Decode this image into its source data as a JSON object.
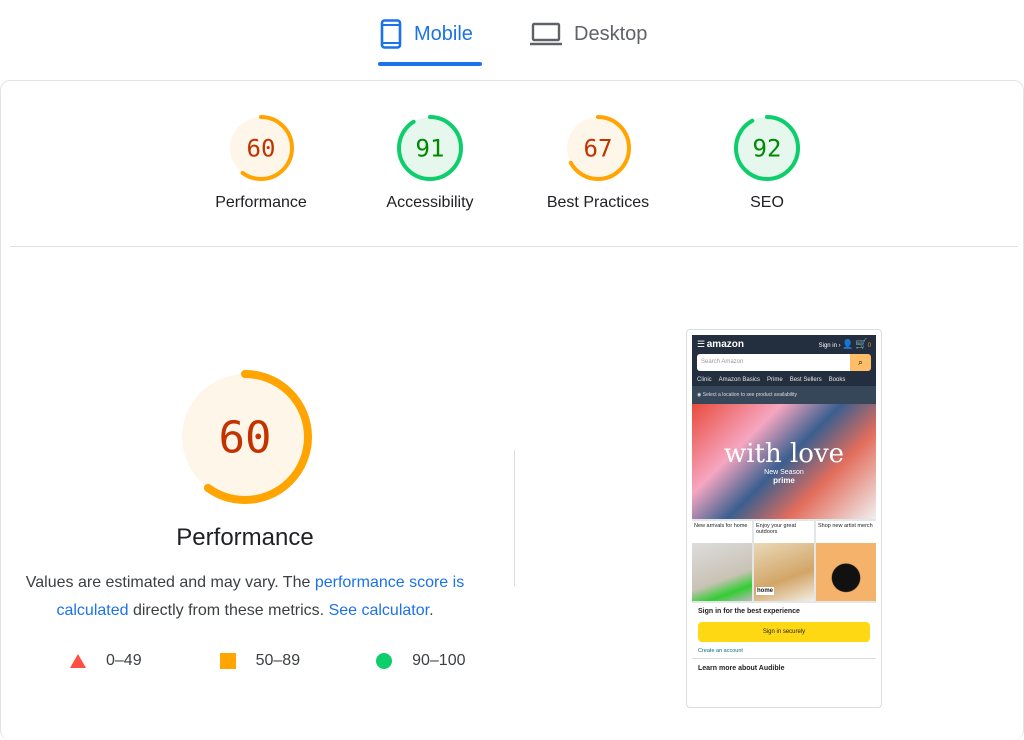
{
  "tabs": [
    {
      "label": "Mobile",
      "icon": "smartphone-icon",
      "active": true
    },
    {
      "label": "Desktop",
      "icon": "laptop-icon",
      "active": false
    }
  ],
  "colors": {
    "accent": "#1a73e8",
    "average": "#ffa400",
    "average_text": "#c33300",
    "average_bg": "#fff6ea",
    "pass": "#0cce6b",
    "pass_text": "#008800",
    "pass_bg": "#e6f8ee",
    "fail": "#ff4e42"
  },
  "categories": [
    {
      "label": "Performance",
      "score": 60,
      "status": "average"
    },
    {
      "label": "Accessibility",
      "score": 91,
      "status": "pass"
    },
    {
      "label": "Best Practices",
      "score": 67,
      "status": "average"
    },
    {
      "label": "SEO",
      "score": 92,
      "status": "pass"
    }
  ],
  "main": {
    "score": 60,
    "title": "Performance",
    "desc_1": "Values are estimated and may vary. The ",
    "link_1": "performance score is calculated",
    "desc_2": " directly from these metrics. ",
    "link_2": "See calculator",
    "desc_3": "."
  },
  "legend": [
    {
      "range": "0–49",
      "shape": "triangle"
    },
    {
      "range": "50–89",
      "shape": "square"
    },
    {
      "range": "90–100",
      "shape": "circle"
    }
  ],
  "screenshot": {
    "logo": "amazon",
    "sign_in": "Sign in ›",
    "cart_count": "0",
    "search_placeholder": "Search Amazon",
    "nav": [
      "Clinic",
      "Amazon Basics",
      "Prime",
      "Best Sellers",
      "Books"
    ],
    "location": "Select a location to see product availability",
    "hero_title": "with love",
    "hero_sub": "New Season",
    "hero_brand": "prime",
    "tiles": [
      "New arrivals for home",
      "Enjoy your great outdoors",
      "Shop new artist merch"
    ],
    "tile_badge": "home",
    "signin_heading": "Sign in for the best experience",
    "signin_button": "Sign in securely",
    "create_account": "Create an account",
    "audible": "Learn more about Audible"
  }
}
